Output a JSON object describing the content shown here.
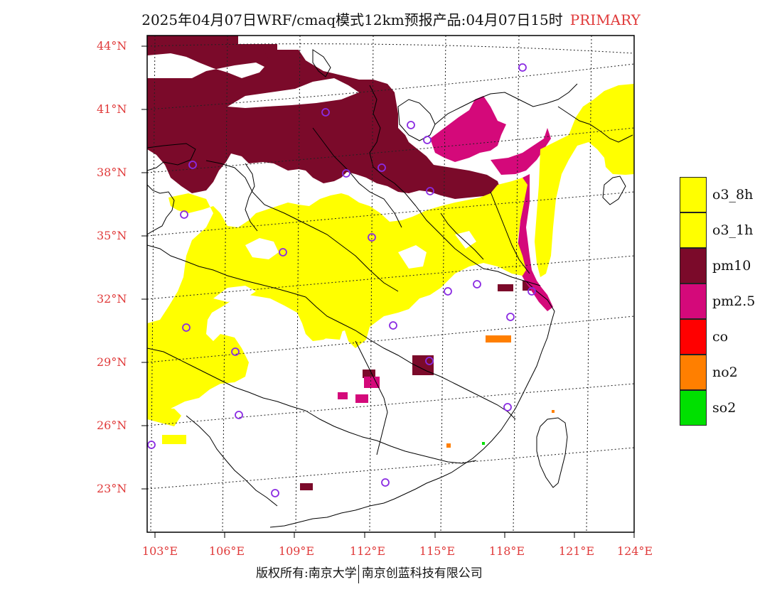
{
  "header": {
    "title": "2025年04月07日WRF/cmaq模式12km预报产品:04月07日15时",
    "tag": "PRIMARY"
  },
  "axes": {
    "lat_labels": [
      "44°N",
      "41°N",
      "38°N",
      "35°N",
      "32°N",
      "29°N",
      "26°N",
      "23°N"
    ],
    "lon_labels": [
      "103°E",
      "106°E",
      "109°E",
      "112°E",
      "115°E",
      "118°E",
      "121°E",
      "124°E"
    ]
  },
  "legend": {
    "items": [
      {
        "label": "o3_8h",
        "color": "#ffff00"
      },
      {
        "label": "o3_1h",
        "color": "#ffff00"
      },
      {
        "label": "pm10",
        "color": "#7b0a2a"
      },
      {
        "label": "pm2.5",
        "color": "#d4097a"
      },
      {
        "label": "co",
        "color": "#ff0000"
      },
      {
        "label": "no2",
        "color": "#ff7f00"
      },
      {
        "label": "so2",
        "color": "#00e000"
      }
    ]
  },
  "footer": {
    "left": "版权所有:南京大学",
    "right": "南京创蓝科技有限公司"
  },
  "colors": {
    "label_red": "#e03a3a",
    "station_purple": "#8a2be2"
  }
}
